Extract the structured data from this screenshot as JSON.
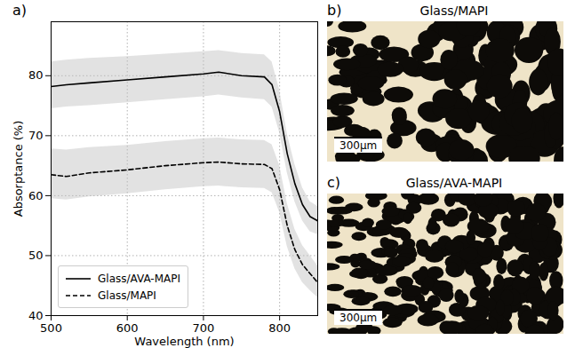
{
  "chart_data": {
    "type": "line",
    "letter": "a)",
    "x_label": "Wavelength (nm)",
    "y_label": "Absorptance (%)",
    "x": [
      500,
      520,
      550,
      600,
      650,
      700,
      720,
      750,
      780,
      790,
      800,
      810,
      820,
      830,
      840,
      850
    ],
    "series": [
      {
        "name": "Glass/AVA-MAPI",
        "color": "#000000",
        "line_style": "solid",
        "values": [
          78.2,
          78.5,
          78.8,
          79.3,
          79.8,
          80.3,
          80.6,
          80.0,
          79.8,
          78.5,
          74.0,
          67.0,
          62.0,
          58.5,
          56.5,
          55.8
        ],
        "lower": [
          74.5,
          74.8,
          75.0,
          75.5,
          76.0,
          76.5,
          76.8,
          76.3,
          76.0,
          74.8,
          70.5,
          63.8,
          59.0,
          55.8,
          54.0,
          53.5
        ],
        "upper": [
          82.3,
          82.6,
          82.9,
          83.2,
          83.6,
          84.0,
          84.2,
          83.7,
          83.5,
          82.3,
          77.6,
          70.3,
          65.2,
          61.3,
          59.0,
          58.2
        ]
      },
      {
        "name": "Glass/MAPI",
        "color": "#000000",
        "line_style": "dashed",
        "values": [
          63.5,
          63.2,
          63.8,
          64.3,
          65.0,
          65.5,
          65.6,
          65.3,
          65.2,
          64.5,
          61.0,
          55.0,
          51.0,
          48.5,
          47.0,
          45.5
        ],
        "lower": [
          59.5,
          59.3,
          59.8,
          60.3,
          61.0,
          61.5,
          61.6,
          61.3,
          61.2,
          60.5,
          57.2,
          51.5,
          47.8,
          45.5,
          44.2,
          43.0
        ],
        "upper": [
          67.8,
          67.6,
          68.0,
          68.4,
          69.0,
          69.5,
          69.6,
          69.3,
          69.2,
          68.5,
          65.0,
          58.7,
          54.4,
          51.7,
          50.0,
          48.3
        ]
      }
    ],
    "xlim": [
      500,
      850
    ],
    "xticks": [
      500,
      600,
      700,
      800
    ],
    "ylim": [
      40,
      89
    ],
    "yticks": [
      40,
      50,
      60,
      70,
      80
    ],
    "grid": true,
    "legend": "lower left"
  },
  "images": [
    {
      "letter": "b)",
      "title": "Glass/MAPI",
      "scale_bar": "300µm"
    },
    {
      "letter": "c)",
      "title": "Glass/AVA-MAPI",
      "scale_bar": "300µm"
    }
  ]
}
